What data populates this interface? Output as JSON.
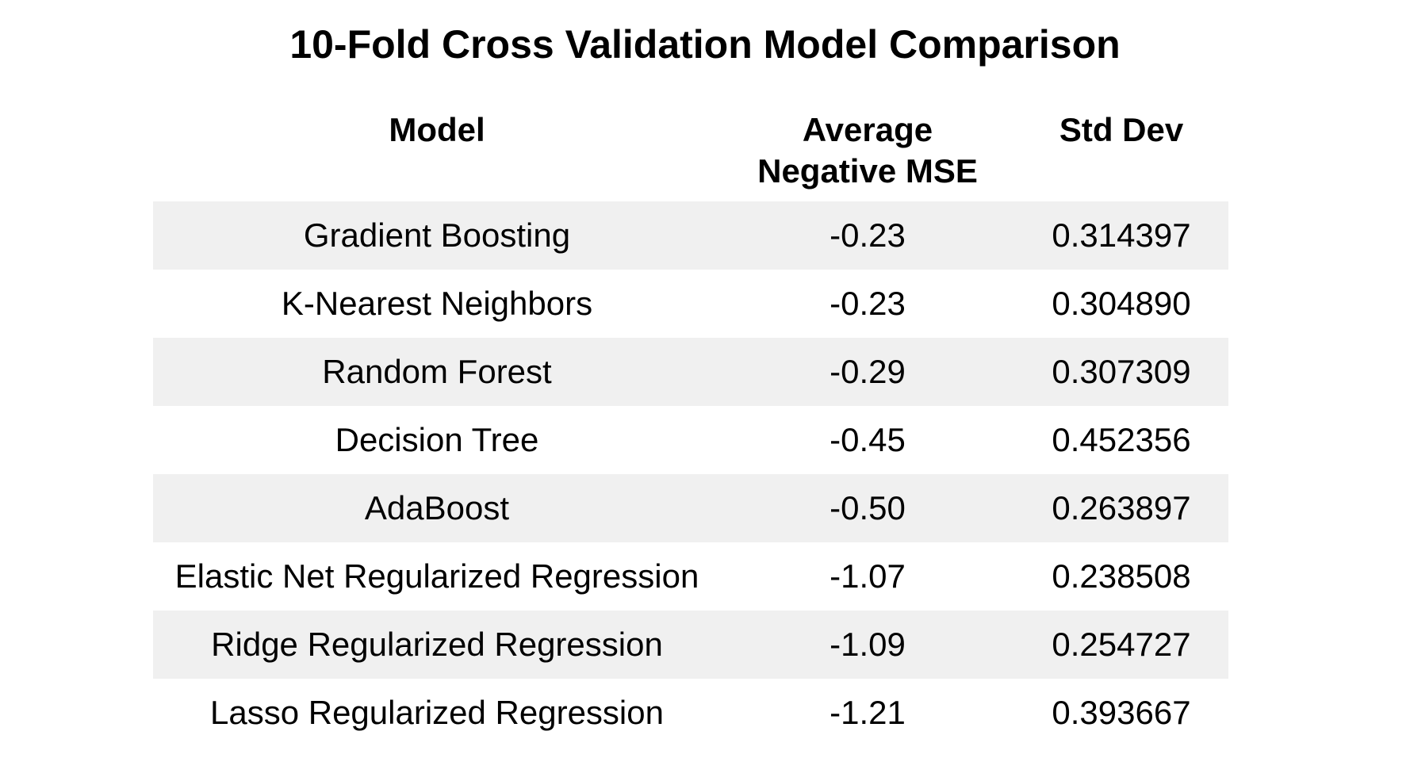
{
  "chart_data": {
    "type": "table",
    "title": "10-Fold Cross Validation Model Comparison",
    "columns": [
      "Model",
      "Average Negative MSE",
      "Std Dev"
    ],
    "header_lines": {
      "model": "Model",
      "mse_line1": "Average",
      "mse_line2": "Negative MSE",
      "std": "Std Dev"
    },
    "rows": [
      {
        "model": "Gradient Boosting",
        "mse": "-0.23",
        "std": "0.314397"
      },
      {
        "model": "K-Nearest Neighbors",
        "mse": "-0.23",
        "std": "0.304890"
      },
      {
        "model": "Random Forest",
        "mse": "-0.29",
        "std": "0.307309"
      },
      {
        "model": "Decision Tree",
        "mse": "-0.45",
        "std": "0.452356"
      },
      {
        "model": "AdaBoost",
        "mse": "-0.50",
        "std": "0.263897"
      },
      {
        "model": "Elastic Net Regularized Regression",
        "mse": "-1.07",
        "std": "0.238508"
      },
      {
        "model": "Ridge Regularized Regression",
        "mse": "-1.09",
        "std": "0.254727"
      },
      {
        "model": "Lasso Regularized Regression",
        "mse": "-1.21",
        "std": "0.393667"
      }
    ],
    "colors": {
      "shaded_row": "#f0f0f0",
      "plain_row": "#ffffff",
      "text": "#000000"
    }
  }
}
